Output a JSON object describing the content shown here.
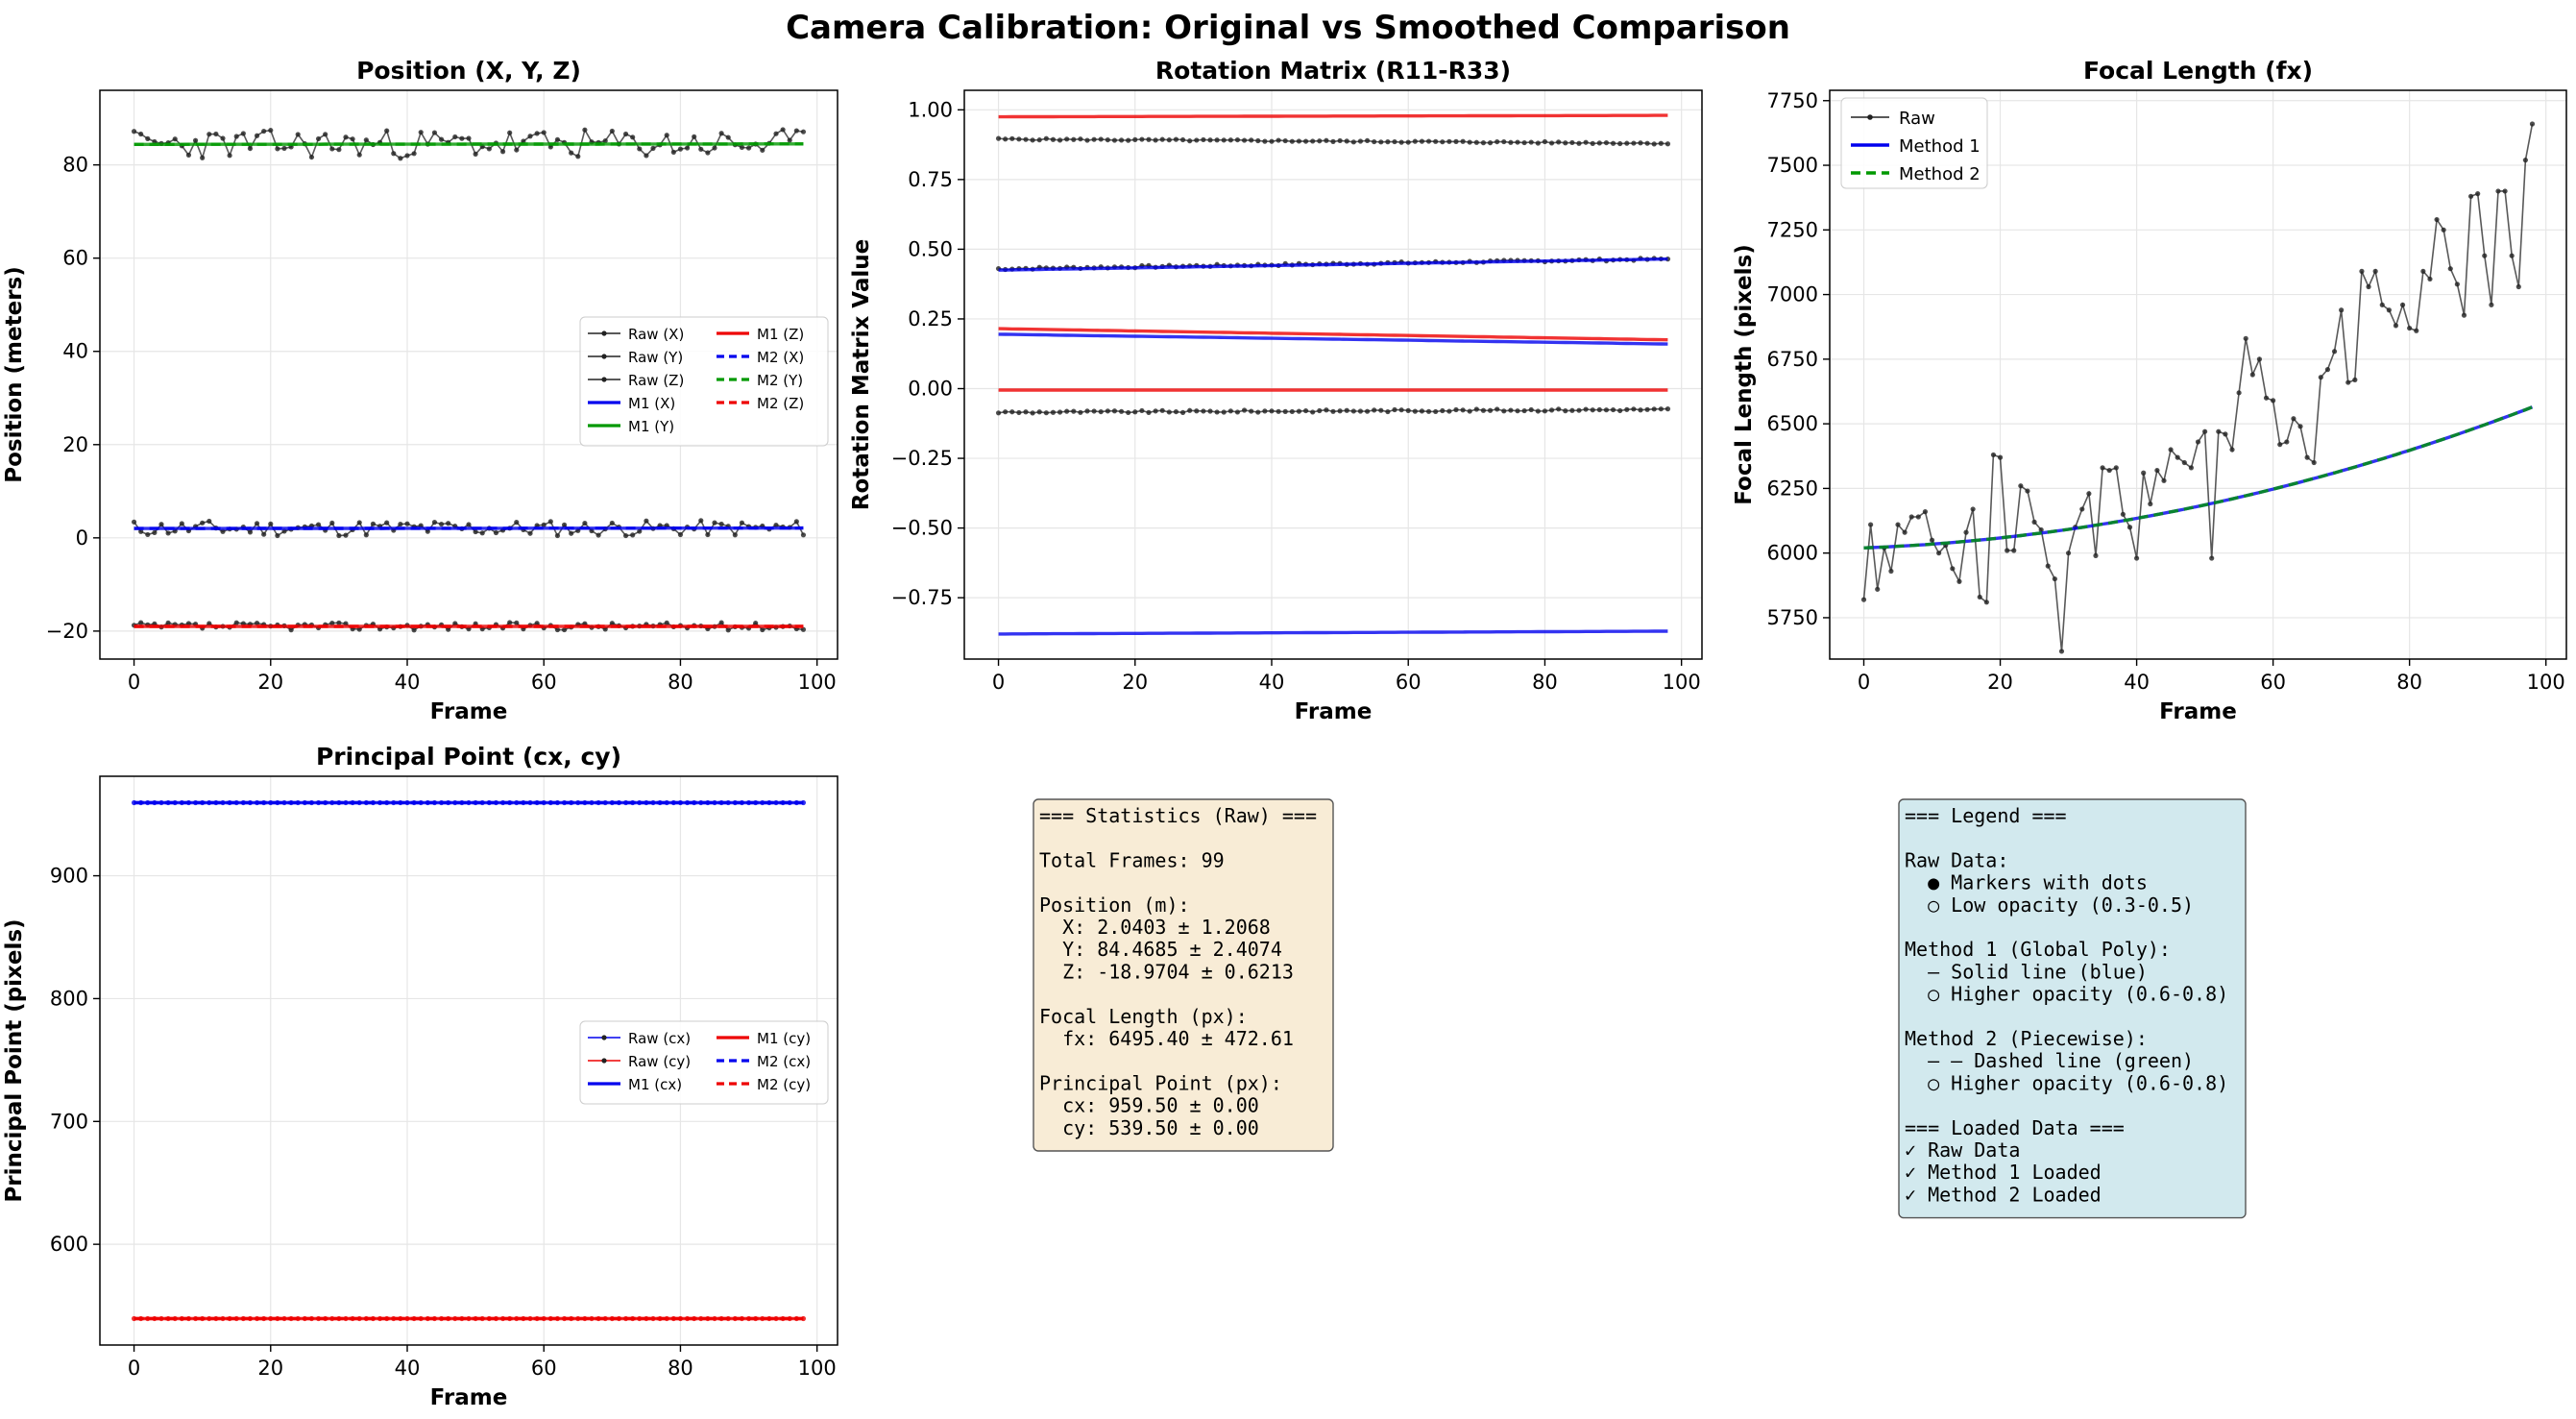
{
  "title": "Camera Calibration: Original vs Smoothed Comparison",
  "colors": {
    "raw": "#222222",
    "m1": [
      "#0000ee",
      "#009900",
      "#ee0000"
    ],
    "m2": [
      "#0000ee",
      "#009900",
      "#ee0000"
    ],
    "stats_box": "#f8ecd6",
    "legend_box": "#d2e9ee"
  },
  "chart_data": [
    {
      "id": "position",
      "type": "line",
      "title": "Position (X, Y, Z)",
      "xlabel": "Frame",
      "ylabel": "Position (meters)",
      "xlim": [
        -5,
        103
      ],
      "ylim": [
        -26,
        96
      ],
      "xticks": [
        "0",
        "20",
        "40",
        "60",
        "80",
        "100"
      ],
      "yticks": [
        "−20",
        "0",
        "20",
        "40",
        "60",
        "80"
      ],
      "grid": true,
      "legend_position": "center-right",
      "legend": [
        "Raw (X)",
        "Raw (Y)",
        "Raw (Z)",
        "M1 (X)",
        "M1 (Y)",
        "M1 (Z)",
        "M2 (X)",
        "M2 (Y)",
        "M2 (Z)"
      ],
      "series": [
        {
          "kind": "raw",
          "mean": 2.04,
          "spread": 1.3,
          "seed": 11,
          "marker": "dot",
          "color": "#222222"
        },
        {
          "kind": "raw",
          "mean": 84.47,
          "spread": 2.4,
          "seed": 23,
          "marker": "square",
          "color": "#222222"
        },
        {
          "kind": "raw",
          "mean": -18.97,
          "spread": 0.62,
          "seed": 37,
          "marker": "triangle",
          "color": "#222222"
        },
        {
          "kind": "m1",
          "start": 2.0,
          "end": 2.1,
          "color": "#0000ee"
        },
        {
          "kind": "m1",
          "start": 84.4,
          "end": 84.5,
          "color": "#009900"
        },
        {
          "kind": "m1",
          "start": -19.0,
          "end": -19.0,
          "color": "#ee0000"
        },
        {
          "kind": "m2",
          "start": 2.0,
          "end": 2.1,
          "color": "#0000ee"
        },
        {
          "kind": "m2",
          "start": 84.4,
          "end": 84.5,
          "color": "#009900"
        },
        {
          "kind": "m2",
          "start": -19.0,
          "end": -19.0,
          "color": "#ee0000"
        }
      ]
    },
    {
      "id": "rotation",
      "type": "line",
      "title": "Rotation Matrix (R11-R33)",
      "xlabel": "Frame",
      "ylabel": "Rotation Matrix Value",
      "xlim": [
        -5,
        103
      ],
      "ylim": [
        -0.97,
        1.07
      ],
      "xticks": [
        "0",
        "20",
        "40",
        "60",
        "80",
        "100"
      ],
      "yticks": [
        "−0.75",
        "−0.50",
        "−0.25",
        "0.00",
        "0.25",
        "0.50",
        "0.75",
        "1.00"
      ],
      "grid": true,
      "series": [
        {
          "kind": "raw",
          "start": 0.895,
          "end": 0.88,
          "spread": 0.003,
          "seed": 5,
          "color": "#222222"
        },
        {
          "kind": "raw",
          "start": 0.43,
          "end": 0.465,
          "spread": 0.004,
          "seed": 7,
          "color": "#222222"
        },
        {
          "kind": "raw",
          "start": -0.085,
          "end": -0.075,
          "spread": 0.004,
          "seed": 9,
          "color": "#222222"
        },
        {
          "kind": "m1",
          "start": 0.975,
          "end": 0.98,
          "color": "#ee0000"
        },
        {
          "kind": "m1",
          "start": 0.425,
          "end": 0.465,
          "color": "#0000ee"
        },
        {
          "kind": "m1",
          "start": 0.215,
          "end": 0.175,
          "color": "#ee0000"
        },
        {
          "kind": "m1",
          "start": 0.195,
          "end": 0.16,
          "color": "#0000ee"
        },
        {
          "kind": "m1",
          "start": -0.005,
          "end": -0.005,
          "color": "#ee0000"
        },
        {
          "kind": "m1",
          "start": -0.88,
          "end": -0.87,
          "color": "#0000ee"
        }
      ]
    },
    {
      "id": "focal",
      "type": "line",
      "title": "Focal Length (fx)",
      "xlabel": "Frame",
      "ylabel": "Focal Length (pixels)",
      "xlim": [
        -5,
        103
      ],
      "ylim": [
        5590,
        7790
      ],
      "xticks": [
        "0",
        "20",
        "40",
        "60",
        "80",
        "100"
      ],
      "yticks": [
        "5750",
        "6000",
        "6250",
        "6500",
        "6750",
        "7000",
        "7250",
        "7500",
        "7750"
      ],
      "grid": true,
      "legend_position": "top-left",
      "legend": [
        "Raw",
        "Method 1",
        "Method 2"
      ],
      "series": [
        {
          "kind": "raw",
          "name": "Raw",
          "color": "#222222",
          "values": [
            5820,
            6110,
            5860,
            6020,
            5930,
            6110,
            6080,
            6140,
            6140,
            6160,
            6050,
            6000,
            6030,
            5940,
            5890,
            6080,
            6170,
            5830,
            5810,
            6380,
            6370,
            6010,
            6010,
            6260,
            6240,
            6120,
            6090,
            5950,
            5900,
            5620,
            6000,
            6100,
            6170,
            6230,
            5990,
            6330,
            6320,
            6330,
            6150,
            6100,
            5980,
            6310,
            6190,
            6320,
            6280,
            6400,
            6370,
            6350,
            6330,
            6430,
            6470,
            5980,
            6470,
            6460,
            6400,
            6620,
            6830,
            6690,
            6750,
            6600,
            6590,
            6420,
            6430,
            6520,
            6490,
            6370,
            6350,
            6680,
            6710,
            6780,
            6940,
            6660,
            6670,
            7090,
            7030,
            7090,
            6960,
            6940,
            6880,
            6960,
            6870,
            6860,
            7090,
            7060,
            7290,
            7250,
            7100,
            7040,
            6920,
            7380,
            7390,
            7150,
            6960,
            7400,
            7400,
            7150,
            7030,
            7520,
            7660
          ]
        },
        {
          "kind": "m1",
          "name": "Method 1",
          "color": "#0000ee",
          "poly": [
            6020,
            1.0,
            0.0465
          ]
        },
        {
          "kind": "m2",
          "name": "Method 2",
          "color": "#009900",
          "poly": [
            6020,
            1.0,
            0.0465
          ],
          "cap": 7380
        }
      ]
    },
    {
      "id": "principal",
      "type": "line",
      "title": "Principal Point (cx, cy)",
      "xlabel": "Frame",
      "ylabel": "Principal Point (pixels)",
      "xlim": [
        -5,
        103
      ],
      "ylim": [
        518,
        981
      ],
      "xticks": [
        "0",
        "20",
        "40",
        "60",
        "80",
        "100"
      ],
      "yticks": [
        "600",
        "700",
        "800",
        "900"
      ],
      "grid": true,
      "legend_position": "center-right",
      "legend": [
        "Raw (cx)",
        "Raw (cy)",
        "M1 (cx)",
        "M1 (cy)",
        "M2 (cx)",
        "M2 (cy)"
      ],
      "series": [
        {
          "kind": "raw",
          "mean": 959.5,
          "spread": 0,
          "seed": 1,
          "marker": "dot",
          "color": "#0000ee"
        },
        {
          "kind": "raw",
          "mean": 539.5,
          "spread": 0,
          "seed": 2,
          "marker": "dot",
          "color": "#ee0000"
        },
        {
          "kind": "m1",
          "start": 959.5,
          "end": 959.5,
          "color": "#0000ee"
        },
        {
          "kind": "m1",
          "start": 539.5,
          "end": 539.5,
          "color": "#ee0000"
        },
        {
          "kind": "m2",
          "start": 959.5,
          "end": 959.5,
          "color": "#0000ee"
        },
        {
          "kind": "m2",
          "start": 539.5,
          "end": 539.5,
          "color": "#ee0000"
        }
      ]
    }
  ],
  "stats_box": {
    "lines": [
      "=== Statistics (Raw) ===",
      "",
      "Total Frames: 99",
      "",
      "Position (m):",
      "  X: 2.0403 ± 1.2068",
      "  Y: 84.4685 ± 2.4074",
      "  Z: -18.9704 ± 0.6213",
      "",
      "Focal Length (px):",
      "  fx: 6495.40 ± 472.61",
      "",
      "Principal Point (px):",
      "  cx: 959.50 ± 0.00",
      "  cy: 539.50 ± 0.00"
    ]
  },
  "legend_box": {
    "lines": [
      "=== Legend ===",
      "",
      "Raw Data:",
      "  ● Markers with dots",
      "  ○ Low opacity (0.3-0.5)",
      "",
      "Method 1 (Global Poly):",
      "  — Solid line (blue)",
      "  ○ Higher opacity (0.6-0.8)",
      "",
      "Method 2 (Piecewise):",
      "  – – Dashed line (green)",
      "  ○ Higher opacity (0.6-0.8)",
      "",
      "=== Loaded Data ===",
      "✓ Raw Data",
      "✓ Method 1 Loaded",
      "✓ Method 2 Loaded"
    ]
  }
}
